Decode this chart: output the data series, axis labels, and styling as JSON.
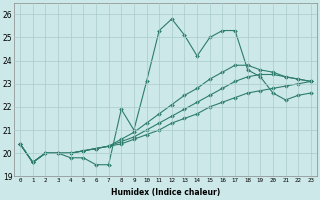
{
  "xlabel": "Humidex (Indice chaleur)",
  "x_values": [
    0,
    1,
    2,
    3,
    4,
    5,
    6,
    7,
    8,
    9,
    10,
    11,
    12,
    13,
    14,
    15,
    16,
    17,
    18,
    19,
    20,
    21,
    22,
    23
  ],
  "y_jagged": [
    20.4,
    19.6,
    20.0,
    20.0,
    19.8,
    19.8,
    19.5,
    19.5,
    21.9,
    21.0,
    23.1,
    25.3,
    25.8,
    25.1,
    24.2,
    25.0,
    25.3,
    25.3,
    23.6,
    23.3,
    22.6,
    22.3,
    22.5,
    22.6
  ],
  "y_line1": [
    20.4,
    19.6,
    20.0,
    20.0,
    20.0,
    20.1,
    20.2,
    20.3,
    20.4,
    20.6,
    20.8,
    21.0,
    21.3,
    21.5,
    21.7,
    22.0,
    22.2,
    22.4,
    22.6,
    22.7,
    22.8,
    22.9,
    23.0,
    23.1
  ],
  "y_line2": [
    20.4,
    19.6,
    20.0,
    20.0,
    20.0,
    20.1,
    20.2,
    20.3,
    20.5,
    20.7,
    21.0,
    21.3,
    21.6,
    21.9,
    22.2,
    22.5,
    22.8,
    23.1,
    23.3,
    23.4,
    23.4,
    23.3,
    23.2,
    23.1
  ],
  "y_line3": [
    20.4,
    19.6,
    20.0,
    20.0,
    20.0,
    20.1,
    20.2,
    20.3,
    20.6,
    20.9,
    21.3,
    21.7,
    22.1,
    22.5,
    22.8,
    23.2,
    23.5,
    23.8,
    23.8,
    23.6,
    23.5,
    23.3,
    23.2,
    23.1
  ],
  "line_color": "#2d7d6b",
  "bg_color": "#cce8e8",
  "grid_color": "#aacccc",
  "ylim": [
    19.0,
    26.5
  ],
  "yticks": [
    19,
    20,
    21,
    22,
    23,
    24,
    25,
    26
  ],
  "marker": "D",
  "markersize": 2.0,
  "linewidth": 0.8
}
